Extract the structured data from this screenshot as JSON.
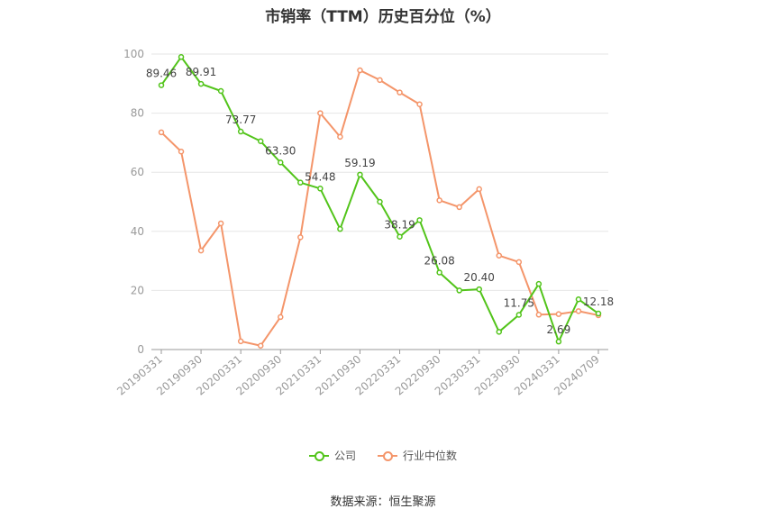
{
  "chart_data": {
    "type": "line",
    "title": "市销率（TTM）历史百分位（%）",
    "ylim": [
      0,
      100
    ],
    "yticks": [
      0,
      20,
      40,
      60,
      80,
      100
    ],
    "x_tick_labels": [
      "20190331",
      "20190930",
      "20200331",
      "20200930",
      "20210331",
      "20210930",
      "20220331",
      "20220930",
      "20230331",
      "20230930",
      "20240331",
      "20240709"
    ],
    "grid": true,
    "legend_position": "bottom",
    "series": [
      {
        "name": "公司",
        "color": "#52c41a",
        "values": [
          89.46,
          99.0,
          89.91,
          87.5,
          73.77,
          70.5,
          63.3,
          56.5,
          54.48,
          40.8,
          59.19,
          50.0,
          38.19,
          43.8,
          26.08,
          20.0,
          20.4,
          6.0,
          11.75,
          22.2,
          2.69,
          17.0,
          12.18
        ],
        "labels": [
          "89.46",
          "",
          "89.91",
          "",
          "73.77",
          "",
          "63.30",
          "",
          "54.48",
          "",
          "59.19",
          "",
          "38.19",
          "",
          "26.08",
          "",
          "20.40",
          "",
          "11.75",
          "",
          "2.69",
          "",
          "12.18"
        ]
      },
      {
        "name": "行业中位数",
        "color": "#f4956a",
        "values": [
          73.5,
          67.0,
          33.5,
          42.7,
          2.8,
          1.3,
          11.0,
          38.0,
          80.0,
          72.0,
          94.5,
          91.2,
          87.0,
          83.0,
          50.5,
          48.2,
          54.3,
          31.8,
          29.6,
          11.8,
          12.0,
          13.0,
          11.6
        ]
      }
    ]
  },
  "legend": {
    "company": "公司",
    "industry": "行业中位数"
  },
  "source": "数据来源：恒生聚源"
}
